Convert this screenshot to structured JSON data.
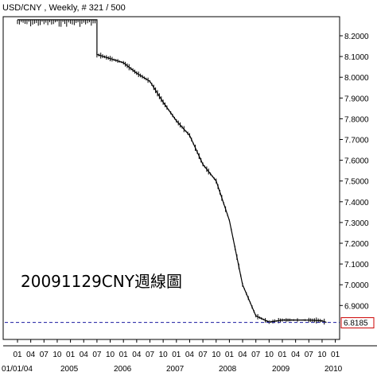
{
  "header": {
    "title": "USD/CNY , Weekly, # 321 / 500"
  },
  "annotation": "20091129CNY週線圖",
  "last_price_label": "6.8185",
  "colors": {
    "background": "#ffffff",
    "line": "#000000",
    "last_price_line": "#1a1aa0",
    "last_price_box": "#cc0000"
  },
  "chart_data": {
    "type": "line",
    "title": "USD/CNY , Weekly, # 321 / 500",
    "y_range": [
      6.78,
      8.26
    ],
    "y_ticks": [
      "8.2000",
      "8.1000",
      "8.0000",
      "7.9000",
      "7.8000",
      "7.7000",
      "7.6000",
      "7.5000",
      "7.4000",
      "7.3000",
      "7.2000",
      "7.1000",
      "7.0000",
      "6.9000"
    ],
    "x_month_labels": [
      "01",
      "04",
      "07",
      "10",
      "01",
      "04",
      "07",
      "10",
      "01",
      "04",
      "07",
      "10",
      "01",
      "04",
      "07",
      "10",
      "01",
      "04",
      "07",
      "10",
      "01",
      "04",
      "07",
      "10",
      "01"
    ],
    "x_year_labels": [
      "01/01/04",
      "2005",
      "2006",
      "2007",
      "2008",
      "2009",
      "2010"
    ],
    "grid": false,
    "last_price": 6.8185,
    "series": [
      {
        "x": [
          "2004-01",
          "2004-07",
          "2005-01",
          "2005-07",
          "2005-07",
          "2005-10",
          "2006-01",
          "2006-04",
          "2006-07",
          "2006-10",
          "2007-01",
          "2007-04",
          "2007-07",
          "2007-10",
          "2008-01",
          "2008-04",
          "2008-07",
          "2008-10",
          "2009-01",
          "2009-04",
          "2009-07",
          "2009-10",
          "2009-11"
        ],
        "values": [
          8.277,
          8.277,
          8.277,
          8.277,
          8.11,
          8.09,
          8.07,
          8.02,
          7.98,
          7.88,
          7.79,
          7.72,
          7.58,
          7.5,
          7.31,
          7.0,
          6.85,
          6.82,
          6.83,
          6.83,
          6.83,
          6.826,
          6.8185
        ]
      }
    ]
  }
}
